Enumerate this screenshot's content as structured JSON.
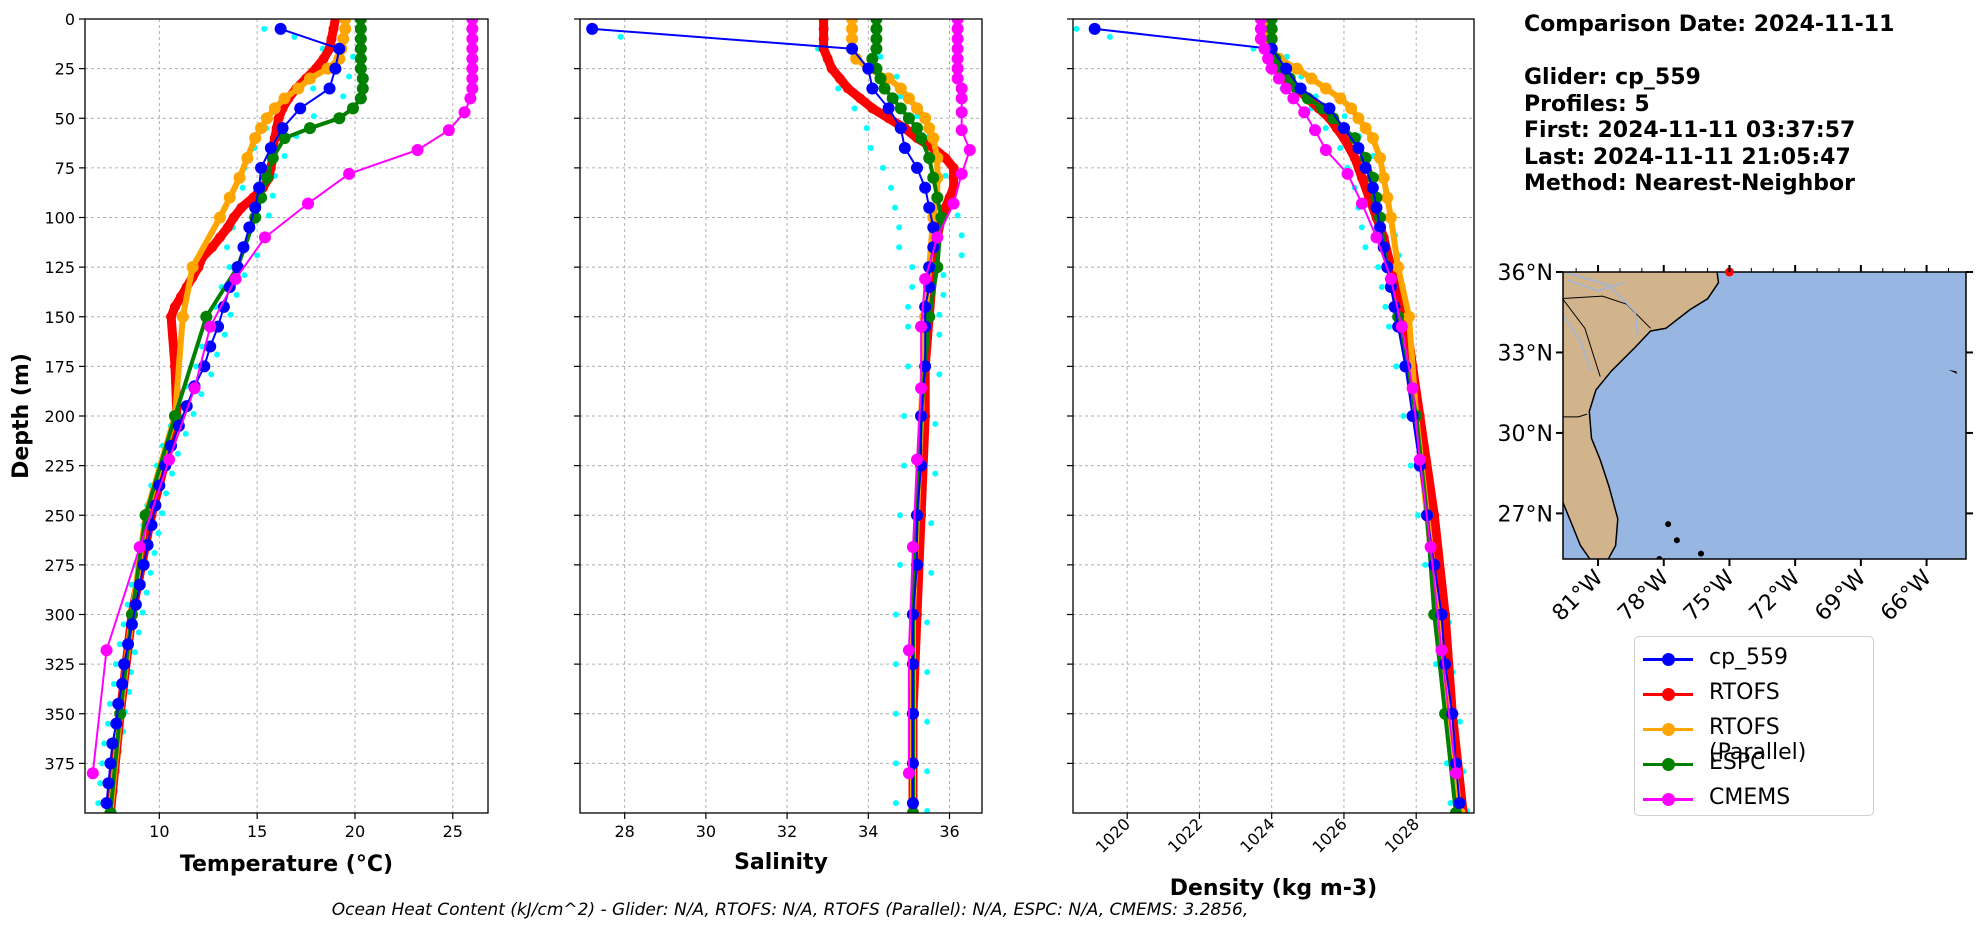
{
  "info": {
    "comparison_date": "Comparison Date: 2024-11-11",
    "glider": "Glider: cp_559",
    "profiles": "Profiles: 5",
    "first": "First: 2024-11-11 03:37:57",
    "last": "Last: 2024-11-11 21:05:47",
    "method": "Method: Nearest-Neighbor"
  },
  "footer": "Ocean Heat Content (kJ/cm^2) - Glider: N/A,  RTOFS: N/A,  RTOFS (Parallel): N/A,  ESPC: N/A,  CMEMS: 3.2856,",
  "colors": {
    "glider": "#0000ff",
    "rtofs": "#ff0000",
    "rtofs_parallel": "#ffa500",
    "espc": "#008000",
    "cmems": "#ff00ff",
    "glider_profiles": "#00ffff",
    "ocean": "#97b6e1",
    "land": "#d2b48c",
    "grid": "#b0b0b0"
  },
  "legend": [
    {
      "label": "cp_559",
      "color": "#0000ff"
    },
    {
      "label": "RTOFS",
      "color": "#ff0000"
    },
    {
      "label": "RTOFS (Parallel)",
      "color": "#ffa500"
    },
    {
      "label": "ESPC",
      "color": "#008000"
    },
    {
      "label": "CMEMS",
      "color": "#ff00ff"
    }
  ],
  "chart_data": [
    {
      "type": "line",
      "xlabel": "Temperature (°C)",
      "ylabel": "Depth (m)",
      "xlim": [
        6.2,
        26.8
      ],
      "ylim": [
        400,
        0
      ],
      "xticks": [
        10,
        15,
        20,
        25
      ],
      "yticks": [
        0,
        25,
        50,
        75,
        100,
        125,
        150,
        175,
        200,
        225,
        250,
        275,
        300,
        325,
        350,
        375
      ],
      "grid": true,
      "series": [
        {
          "name": "cp_559",
          "depth": [
            5,
            15,
            25,
            35,
            45,
            55,
            65,
            75,
            85,
            95,
            105,
            115,
            125,
            135,
            145,
            155,
            165,
            175,
            185,
            195,
            205,
            215,
            225,
            235,
            245,
            255,
            265,
            275,
            285,
            295,
            305,
            315,
            325,
            335,
            345,
            355,
            365,
            375,
            385,
            395
          ],
          "values": [
            16.2,
            19.2,
            19.0,
            18.7,
            17.2,
            16.3,
            15.7,
            15.2,
            15.1,
            14.9,
            14.6,
            14.3,
            14.0,
            13.6,
            13.3,
            13.0,
            12.6,
            12.3,
            11.8,
            11.4,
            11.0,
            10.6,
            10.3,
            10.0,
            9.8,
            9.6,
            9.4,
            9.2,
            9.0,
            8.8,
            8.6,
            8.4,
            8.2,
            8.1,
            7.9,
            7.8,
            7.6,
            7.5,
            7.4,
            7.3
          ]
        },
        {
          "name": "RTOFS",
          "depth": [
            0,
            5,
            10,
            15,
            20,
            25,
            30,
            35,
            40,
            45,
            50,
            55,
            60,
            65,
            70,
            75,
            80,
            85,
            90,
            95,
            100,
            105,
            110,
            115,
            120,
            125,
            130,
            135,
            140,
            145,
            150,
            175,
            200,
            250,
            300,
            350,
            400
          ],
          "values": [
            19.0,
            18.9,
            18.8,
            18.7,
            18.4,
            18.0,
            17.5,
            17.0,
            16.6,
            16.3,
            16.1,
            16.0,
            15.9,
            15.8,
            15.8,
            15.7,
            15.6,
            15.3,
            14.8,
            14.2,
            13.8,
            13.5,
            13.1,
            12.7,
            12.2,
            12.0,
            11.7,
            11.4,
            11.1,
            10.8,
            10.6,
            10.8,
            10.9,
            9.6,
            8.6,
            8.0,
            7.5
          ]
        },
        {
          "name": "RTOFS (Parallel)",
          "depth": [
            0,
            5,
            10,
            15,
            20,
            25,
            30,
            35,
            40,
            45,
            50,
            55,
            60,
            70,
            80,
            90,
            100,
            125,
            150,
            200,
            250,
            300,
            350,
            400
          ],
          "values": [
            19.5,
            19.5,
            19.4,
            19.3,
            19.2,
            18.6,
            17.7,
            17.1,
            16.4,
            15.9,
            15.5,
            15.2,
            14.9,
            14.5,
            14.1,
            13.6,
            13.1,
            11.7,
            11.2,
            10.8,
            9.3,
            8.6,
            8.0,
            7.5
          ]
        },
        {
          "name": "ESPC",
          "depth": [
            0,
            5,
            10,
            15,
            20,
            25,
            30,
            35,
            40,
            45,
            50,
            55,
            60,
            70,
            80,
            90,
            100,
            125,
            150,
            200,
            250,
            300,
            350,
            400
          ],
          "values": [
            20.3,
            20.3,
            20.3,
            20.3,
            20.3,
            20.3,
            20.4,
            20.4,
            20.3,
            19.9,
            19.2,
            17.7,
            16.4,
            15.8,
            15.5,
            15.2,
            14.9,
            14.0,
            12.4,
            10.8,
            9.3,
            8.6,
            8.0,
            7.5
          ]
        },
        {
          "name": "CMEMS",
          "depth": [
            0,
            5,
            10,
            15,
            20,
            25,
            30,
            35,
            40,
            47,
            56,
            66,
            78,
            93,
            110,
            131,
            155,
            186,
            222,
            266,
            318,
            380
          ],
          "values": [
            26.0,
            26.0,
            26.0,
            26.0,
            26.0,
            26.0,
            26.0,
            26.0,
            25.9,
            25.6,
            24.8,
            23.2,
            19.7,
            17.6,
            15.4,
            13.9,
            12.6,
            11.8,
            10.5,
            9.0,
            7.3,
            6.6
          ]
        }
      ]
    },
    {
      "type": "line",
      "xlabel": "Salinity",
      "xlim": [
        26.9,
        36.8
      ],
      "ylim": [
        400,
        0
      ],
      "xticks": [
        28,
        30,
        32,
        34,
        36
      ],
      "grid": true,
      "series": [
        {
          "name": "cp_559",
          "depth": [
            5,
            15,
            25,
            35,
            45,
            55,
            65,
            75,
            85,
            95,
            105,
            115,
            125,
            135,
            145,
            155,
            175,
            200,
            225,
            250,
            275,
            300,
            325,
            350,
            375,
            395
          ],
          "values": [
            27.2,
            33.6,
            34.0,
            34.1,
            34.5,
            34.8,
            34.9,
            35.2,
            35.4,
            35.5,
            35.6,
            35.6,
            35.5,
            35.5,
            35.4,
            35.4,
            35.4,
            35.3,
            35.3,
            35.2,
            35.2,
            35.1,
            35.1,
            35.1,
            35.1,
            35.1
          ]
        },
        {
          "name": "RTOFS",
          "depth": [
            0,
            5,
            10,
            15,
            20,
            25,
            30,
            35,
            40,
            45,
            50,
            55,
            60,
            65,
            70,
            75,
            80,
            85,
            90,
            95,
            100,
            110,
            125,
            150,
            175,
            200,
            250,
            300,
            350,
            400
          ],
          "values": [
            32.9,
            32.9,
            32.9,
            32.9,
            33.0,
            33.1,
            33.3,
            33.5,
            33.8,
            34.1,
            34.5,
            34.9,
            35.2,
            35.6,
            35.9,
            36.1,
            36.1,
            36.1,
            36.0,
            35.9,
            35.8,
            35.7,
            35.6,
            35.5,
            35.4,
            35.4,
            35.3,
            35.2,
            35.1,
            35.1
          ]
        },
        {
          "name": "RTOFS (Parallel)",
          "depth": [
            0,
            5,
            10,
            15,
            20,
            25,
            30,
            35,
            40,
            45,
            50,
            55,
            60,
            70,
            80,
            90,
            100,
            125,
            150,
            200,
            250,
            300,
            350,
            400
          ],
          "values": [
            33.6,
            33.6,
            33.6,
            33.6,
            33.7,
            34.0,
            34.5,
            34.8,
            35.0,
            35.2,
            35.4,
            35.5,
            35.6,
            35.7,
            35.7,
            35.7,
            35.6,
            35.5,
            35.4,
            35.3,
            35.2,
            35.1,
            35.1,
            35.1
          ]
        },
        {
          "name": "ESPC",
          "depth": [
            0,
            5,
            10,
            15,
            20,
            25,
            30,
            35,
            40,
            45,
            50,
            55,
            60,
            70,
            80,
            90,
            100,
            125,
            150,
            200,
            250,
            300,
            350,
            400
          ],
          "values": [
            34.2,
            34.2,
            34.2,
            34.2,
            34.1,
            34.2,
            34.3,
            34.4,
            34.6,
            34.8,
            35.0,
            35.2,
            35.3,
            35.5,
            35.6,
            35.7,
            35.8,
            35.7,
            35.5,
            35.3,
            35.2,
            35.1,
            35.1,
            35.1
          ]
        },
        {
          "name": "CMEMS",
          "depth": [
            0,
            5,
            10,
            15,
            20,
            25,
            30,
            35,
            40,
            47,
            56,
            66,
            78,
            93,
            110,
            131,
            155,
            186,
            222,
            266,
            318,
            380
          ],
          "values": [
            36.2,
            36.2,
            36.2,
            36.2,
            36.2,
            36.2,
            36.2,
            36.3,
            36.3,
            36.3,
            36.3,
            36.5,
            36.3,
            36.1,
            35.7,
            35.4,
            35.3,
            35.3,
            35.2,
            35.1,
            35.0,
            35.0
          ]
        }
      ]
    },
    {
      "type": "line",
      "xlabel": "Density (kg m-3)",
      "xlim": [
        1018.5,
        1029.6
      ],
      "ylim": [
        400,
        0
      ],
      "xticks": [
        1020,
        1022,
        1024,
        1026,
        1028
      ],
      "grid": true,
      "series": [
        {
          "name": "cp_559",
          "depth": [
            5,
            15,
            25,
            35,
            45,
            55,
            65,
            75,
            85,
            95,
            105,
            115,
            125,
            135,
            145,
            155,
            175,
            200,
            225,
            250,
            275,
            300,
            325,
            350,
            375,
            395
          ],
          "values": [
            1019.1,
            1024.0,
            1024.4,
            1024.8,
            1025.6,
            1026.0,
            1026.4,
            1026.6,
            1026.8,
            1026.9,
            1027.0,
            1027.1,
            1027.2,
            1027.3,
            1027.4,
            1027.5,
            1027.7,
            1027.9,
            1028.1,
            1028.3,
            1028.5,
            1028.7,
            1028.8,
            1029.0,
            1029.1,
            1029.2
          ]
        },
        {
          "name": "RTOFS",
          "depth": [
            0,
            5,
            10,
            15,
            20,
            25,
            30,
            35,
            40,
            45,
            50,
            55,
            60,
            70,
            80,
            90,
            100,
            110,
            125,
            150,
            175,
            200,
            250,
            300,
            350,
            400
          ],
          "values": [
            1023.8,
            1023.8,
            1023.9,
            1023.9,
            1024.0,
            1024.2,
            1024.4,
            1024.7,
            1025.0,
            1025.3,
            1025.6,
            1025.8,
            1026.0,
            1026.3,
            1026.5,
            1026.7,
            1026.9,
            1027.1,
            1027.3,
            1027.7,
            1027.9,
            1028.1,
            1028.5,
            1028.8,
            1029.0,
            1029.3
          ]
        },
        {
          "name": "RTOFS (Parallel)",
          "depth": [
            0,
            5,
            10,
            15,
            20,
            25,
            30,
            35,
            40,
            45,
            50,
            55,
            60,
            70,
            80,
            90,
            100,
            125,
            150,
            200,
            250,
            300,
            350,
            400
          ],
          "values": [
            1023.9,
            1023.9,
            1023.9,
            1024.0,
            1024.2,
            1024.7,
            1025.1,
            1025.5,
            1025.9,
            1026.2,
            1026.4,
            1026.6,
            1026.8,
            1027.0,
            1027.1,
            1027.2,
            1027.3,
            1027.5,
            1027.8,
            1028.0,
            1028.3,
            1028.6,
            1028.9,
            1029.2
          ]
        },
        {
          "name": "ESPC",
          "depth": [
            0,
            5,
            10,
            15,
            20,
            25,
            30,
            35,
            40,
            45,
            50,
            55,
            60,
            70,
            80,
            90,
            100,
            125,
            150,
            200,
            250,
            300,
            350,
            400
          ],
          "values": [
            1024.0,
            1024.0,
            1024.0,
            1024.0,
            1024.1,
            1024.3,
            1024.5,
            1024.7,
            1025.0,
            1025.4,
            1025.7,
            1026.0,
            1026.3,
            1026.6,
            1026.8,
            1026.9,
            1027.0,
            1027.2,
            1027.5,
            1028.0,
            1028.3,
            1028.5,
            1028.8,
            1029.1
          ]
        },
        {
          "name": "CMEMS",
          "depth": [
            0,
            5,
            10,
            15,
            20,
            25,
            30,
            35,
            40,
            47,
            56,
            66,
            78,
            93,
            110,
            131,
            155,
            186,
            222,
            266,
            318,
            380
          ],
          "values": [
            1023.7,
            1023.7,
            1023.7,
            1023.8,
            1023.9,
            1024.0,
            1024.2,
            1024.4,
            1024.6,
            1024.9,
            1025.2,
            1025.5,
            1026.1,
            1026.5,
            1026.9,
            1027.3,
            1027.6,
            1027.9,
            1028.1,
            1028.4,
            1028.7,
            1029.1
          ]
        }
      ]
    },
    {
      "type": "map",
      "lat_ticks": [
        "36°N",
        "33°N",
        "30°N",
        "27°N"
      ],
      "lon_ticks": [
        "81°W",
        "78°W",
        "75°W",
        "72°W",
        "69°W",
        "66°W"
      ],
      "lat_range": [
        25.3,
        36.0
      ],
      "lon_range": [
        -82.6,
        -64.2
      ],
      "glider_position": {
        "lat": 36.0,
        "lon": -75.0
      }
    }
  ]
}
